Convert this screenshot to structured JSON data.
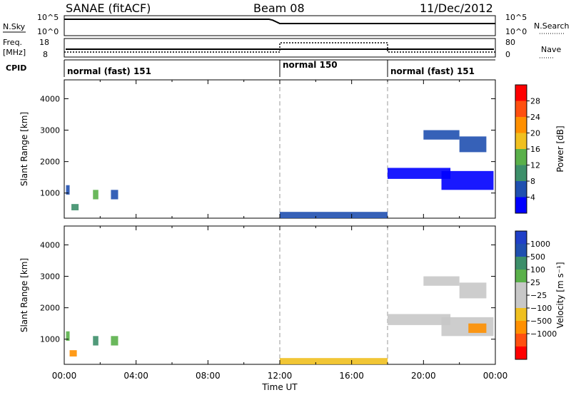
{
  "header": {
    "left": "SANAE (fitACF)",
    "center": "Beam 08",
    "right": "11/Dec/2012"
  },
  "strips": {
    "nsky_label": "N.Sky",
    "nsearch_label": "N.Search",
    "freq_label": "Freq.",
    "mhz_label": "[MHz]",
    "nave_label": "Nave",
    "cpid_label": "CPID",
    "left_ticks_top": [
      "10^5",
      "10^0"
    ],
    "right_ticks_top": [
      "10^5",
      "10^0"
    ],
    "left_ticks_freq": [
      "18",
      "8"
    ],
    "right_ticks_nave": [
      "80",
      "0"
    ]
  },
  "cpid_segments": [
    {
      "label": "normal (fast) 151",
      "start": 0,
      "end": 12
    },
    {
      "label": "normal 150",
      "start": 12,
      "end": 18
    },
    {
      "label": "normal (fast) 151",
      "start": 18,
      "end": 24
    }
  ],
  "colors": {
    "power_scale": [
      "#0000ff",
      "#2050b0",
      "#3d8f6a",
      "#5ab04a",
      "#f0c020",
      "#ff9000",
      "#ff5010",
      "#ff0000"
    ],
    "velocity_scale": [
      "#ff0000",
      "#ff5010",
      "#ff9000",
      "#f0c020",
      "#c8c8c8",
      "#c8c8c8",
      "#5ab04a",
      "#3d8f6a",
      "#2050b0",
      "#2040c8"
    ]
  },
  "chart_data": [
    {
      "type": "heatmap",
      "name": "power",
      "xlabel": "",
      "ylabel": "Slant Range [km]",
      "xlim": [
        0,
        24
      ],
      "ylim": [
        200,
        4600
      ],
      "yticks": [
        "1000",
        "2000",
        "3000",
        "4000"
      ],
      "colorbar_label": "Power [dB]",
      "colorbar_ticks": [
        "4",
        "8",
        "12",
        "16",
        "20",
        "24",
        "28"
      ],
      "bands": [
        {
          "x0": 0.1,
          "x1": 0.3,
          "y0": 950,
          "y1": 1250,
          "level": 1
        },
        {
          "x0": 0.4,
          "x1": 0.8,
          "y0": 450,
          "y1": 650,
          "level": 2
        },
        {
          "x0": 1.6,
          "x1": 1.9,
          "y0": 800,
          "y1": 1100,
          "level": 3
        },
        {
          "x0": 2.6,
          "x1": 3.0,
          "y0": 800,
          "y1": 1100,
          "level": 1
        },
        {
          "x0": 18.0,
          "x1": 21.5,
          "y0": 1450,
          "y1": 1800,
          "level": 0
        },
        {
          "x0": 21.0,
          "x1": 23.9,
          "y0": 1100,
          "y1": 1700,
          "level": 0
        },
        {
          "x0": 20.0,
          "x1": 22.0,
          "y0": 2700,
          "y1": 3000,
          "level": 1
        },
        {
          "x0": 22.0,
          "x1": 23.5,
          "y0": 2300,
          "y1": 2800,
          "level": 1
        },
        {
          "x0": 12.0,
          "x1": 18.0,
          "y0": 200,
          "y1": 400,
          "level": 1
        }
      ]
    },
    {
      "type": "heatmap",
      "name": "velocity",
      "xlabel": "Time UT",
      "ylabel": "Slant Range [km]",
      "xlim": [
        0,
        24
      ],
      "ylim": [
        200,
        4600
      ],
      "yticks": [
        "1000",
        "2000",
        "3000",
        "4000"
      ],
      "xticks": [
        "00:00",
        "04:00",
        "08:00",
        "12:00",
        "16:00",
        "20:00",
        "00:00"
      ],
      "colorbar_label": "Velocity [m s⁻¹]",
      "colorbar_ticks": [
        "1000",
        "500",
        "100",
        "25",
        "−25",
        "−100",
        "−500",
        "−1000"
      ],
      "bands": [
        {
          "x0": 0.1,
          "x1": 0.3,
          "y0": 950,
          "y1": 1250,
          "level": 6
        },
        {
          "x0": 0.3,
          "x1": 0.7,
          "y0": 450,
          "y1": 650,
          "level": 2
        },
        {
          "x0": 1.6,
          "x1": 1.9,
          "y0": 800,
          "y1": 1100,
          "level": 7
        },
        {
          "x0": 2.6,
          "x1": 3.0,
          "y0": 800,
          "y1": 1100,
          "level": 6
        },
        {
          "x0": 18.0,
          "x1": 21.5,
          "y0": 1450,
          "y1": 1800,
          "level": 4
        },
        {
          "x0": 21.0,
          "x1": 23.9,
          "y0": 1100,
          "y1": 1700,
          "level": 4
        },
        {
          "x0": 22.5,
          "x1": 23.5,
          "y0": 1200,
          "y1": 1500,
          "level": 2
        },
        {
          "x0": 20.0,
          "x1": 22.0,
          "y0": 2700,
          "y1": 3000,
          "level": 4
        },
        {
          "x0": 22.0,
          "x1": 23.5,
          "y0": 2300,
          "y1": 2800,
          "level": 4
        },
        {
          "x0": 12.0,
          "x1": 18.0,
          "y0": 200,
          "y1": 400,
          "level": 3
        }
      ]
    }
  ]
}
